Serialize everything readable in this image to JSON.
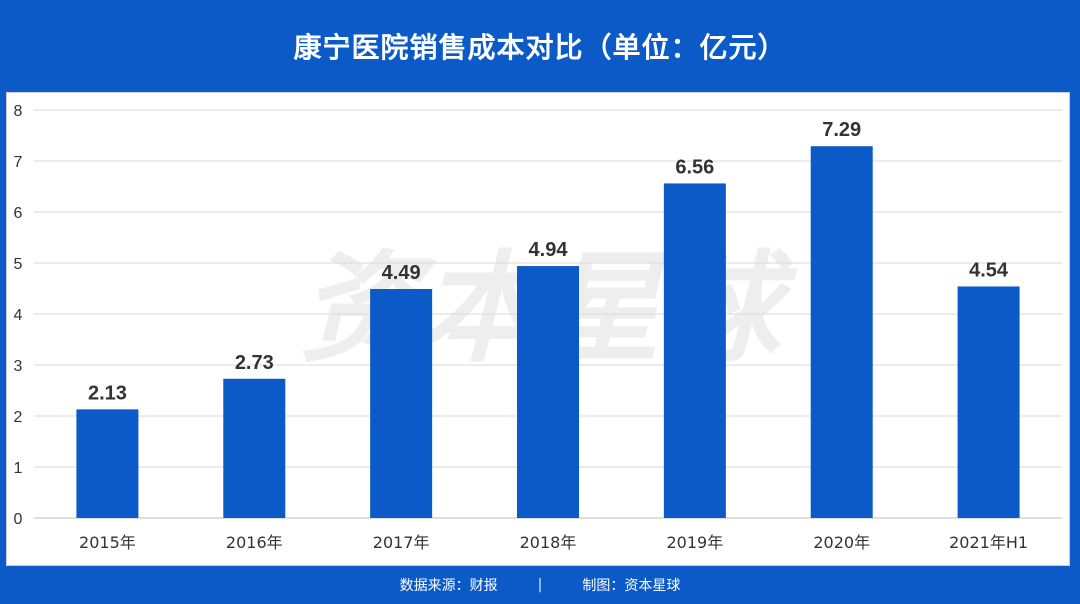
{
  "header": {
    "title": "康宁医院销售成本对比（单位：亿元）"
  },
  "watermark": "资本星球",
  "footer": {
    "source": "数据来源：财报",
    "separator": "|",
    "credit": "制图：资本星球"
  },
  "colors": {
    "background": "#0b5ac8",
    "bar": "#0b5ac8",
    "panel": "#ffffff",
    "grid": "#d9d9d9"
  },
  "chart_data": {
    "type": "bar",
    "title": "康宁医院销售成本对比（单位：亿元）",
    "categories": [
      "2015年",
      "2016年",
      "2017年",
      "2018年",
      "2019年",
      "2020年",
      "2021年H1"
    ],
    "values": [
      2.13,
      2.73,
      4.49,
      4.94,
      6.56,
      7.29,
      4.54
    ],
    "value_labels": [
      "2.13",
      "2.73",
      "4.49",
      "4.94",
      "6.56",
      "7.29",
      "4.54"
    ],
    "ylim": [
      0,
      8
    ],
    "yticks": [
      0,
      1,
      2,
      3,
      4,
      5,
      6,
      7,
      8
    ],
    "grid": true,
    "legend": "none"
  }
}
